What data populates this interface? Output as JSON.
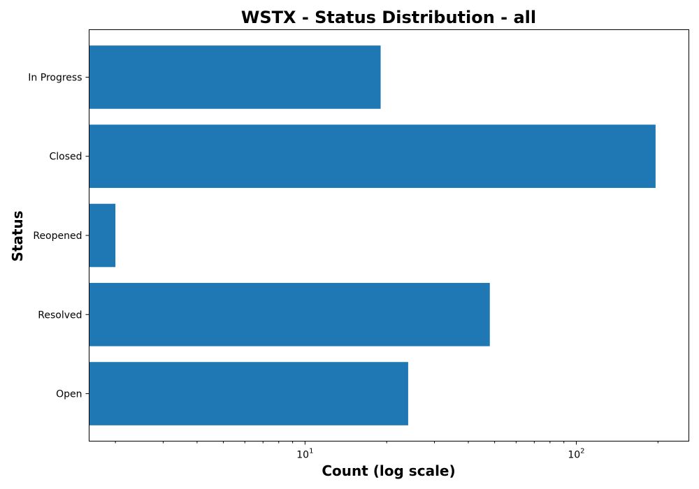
{
  "chart_data": {
    "type": "bar",
    "orientation": "horizontal",
    "title": "WSTX - Status Distribution - all",
    "xlabel": "Count (log scale)",
    "ylabel": "Status",
    "x_scale": "log",
    "xlim": [
      1.6,
      260
    ],
    "x_ticks": [
      {
        "base": "10",
        "exp": "1",
        "value": 10
      },
      {
        "base": "10",
        "exp": "2",
        "value": 100
      }
    ],
    "categories": [
      "Open",
      "Resolved",
      "Reopened",
      "Closed",
      "In Progress"
    ],
    "values": [
      24,
      48,
      2,
      196,
      19
    ],
    "bar_color": "#1f77b4",
    "grid": false,
    "legend": "none"
  }
}
